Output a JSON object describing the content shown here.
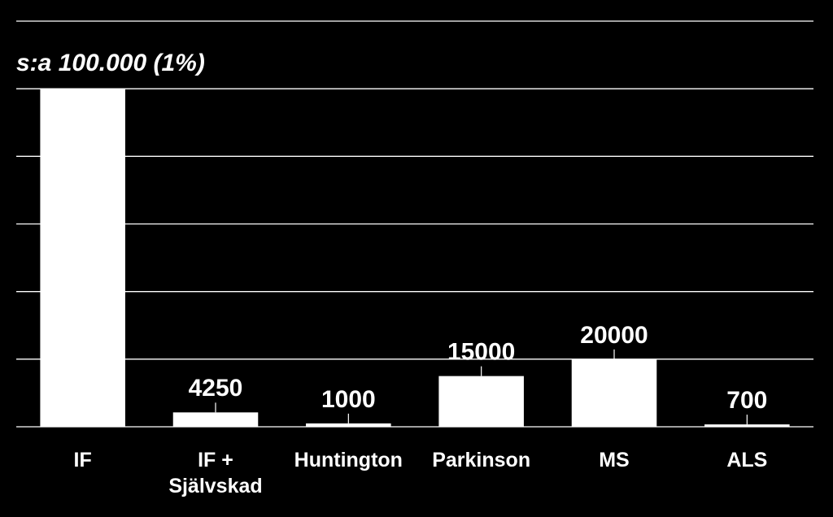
{
  "chart_data": {
    "type": "bar",
    "categories": [
      "IF",
      "IF + Självskad",
      "Huntington",
      "Parkinson",
      "MS",
      "ALS"
    ],
    "values": [
      100000,
      4250,
      1000,
      15000,
      20000,
      700
    ],
    "value_labels": [
      "s:a 100.000 (1%)",
      "4250",
      "1000",
      "15000",
      "20000",
      "700"
    ],
    "color": "#ffffff",
    "ylim": [
      0,
      120000
    ],
    "yticks": [
      0,
      20000,
      40000,
      60000,
      80000,
      100000,
      120000
    ],
    "grid": true
  }
}
